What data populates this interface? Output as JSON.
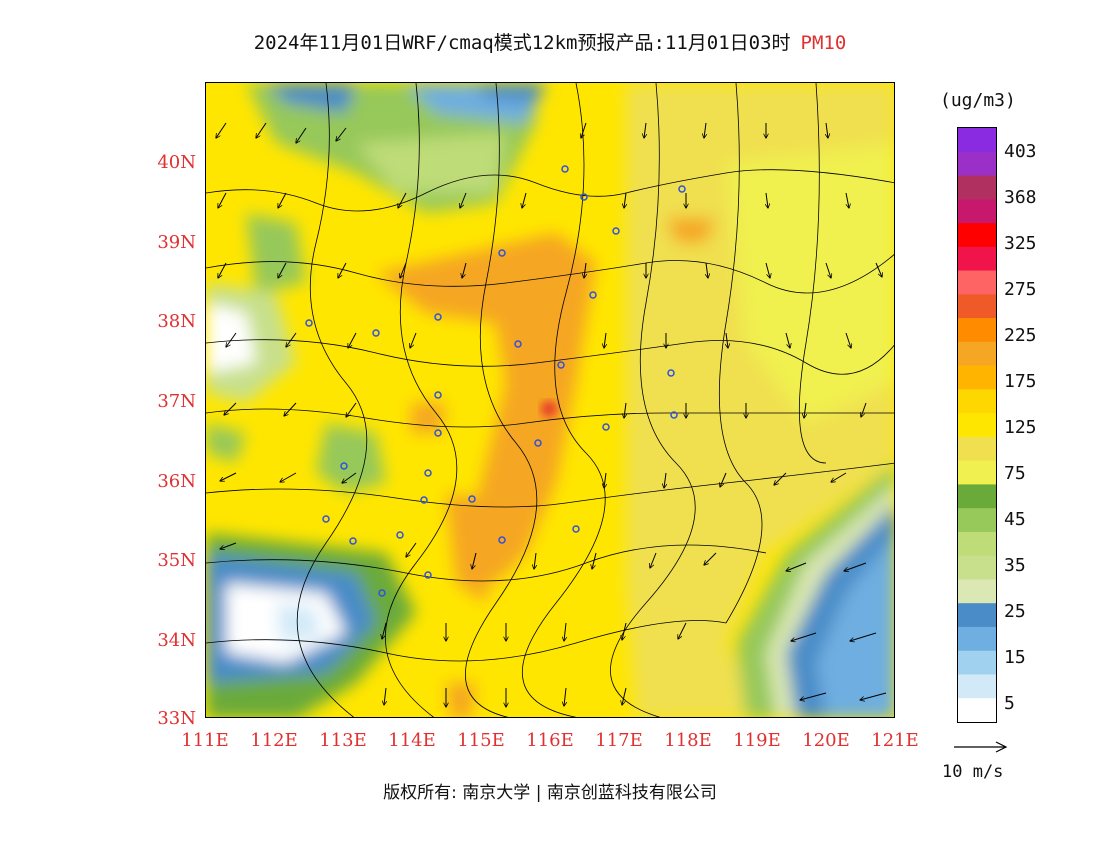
{
  "title": {
    "main": "2024年11月01日WRF/cmaq模式12km预报产品:11月01日03时",
    "variable": "PM10"
  },
  "lat_labels": [
    "40N",
    "39N",
    "38N",
    "37N",
    "36N",
    "35N",
    "34N",
    "33N"
  ],
  "lon_labels": [
    "111E",
    "112E",
    "113E",
    "114E",
    "115E",
    "116E",
    "117E",
    "118E",
    "119E",
    "120E",
    "121E"
  ],
  "legend": {
    "unit": "(ug/m3)",
    "labels": [
      "403",
      "368",
      "325",
      "275",
      "225",
      "175",
      "125",
      "75",
      "45",
      "35",
      "25",
      "15",
      "5"
    ],
    "colors": [
      "#8a2be2",
      "#9b30c8",
      "#b03060",
      "#c8186e",
      "#ff0000",
      "#f0144b",
      "#ff6464",
      "#f05a28",
      "#ff8c00",
      "#f5a623",
      "#ffb400",
      "#ffd700",
      "#ffe600",
      "#f0e050",
      "#f0f050",
      "#6aaa3a",
      "#96c85a",
      "#bedc78",
      "#c8e08c",
      "#dce8b4",
      "#4a8cc8",
      "#6eaee0",
      "#a0d2f0",
      "#d2eaf8",
      "#ffffff"
    ]
  },
  "wind_scale": {
    "label": "10 m/s"
  },
  "copyright": "版权所有: 南京大学 | 南京创蓝科技有限公司"
}
